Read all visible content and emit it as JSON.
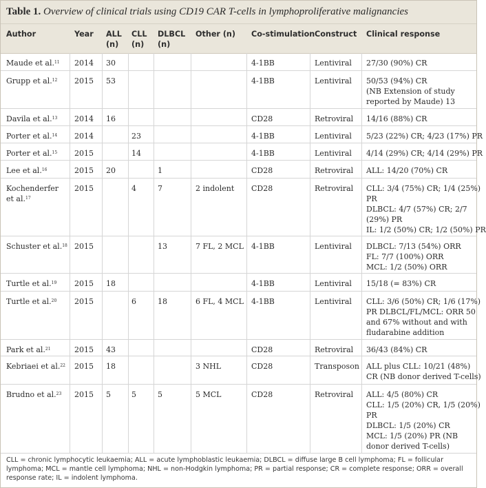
{
  "caption": {
    "label": "Table 1.",
    "title": "Overview of clinical trials using CD19 CAR T-cells in lymphoproliferative malignancies"
  },
  "headers": {
    "author": [
      "Author"
    ],
    "year": [
      "Year"
    ],
    "all": [
      "ALL",
      "(n)"
    ],
    "cll": [
      "CLL",
      "(n)"
    ],
    "dlbcl": [
      "DLBCL",
      "(n)"
    ],
    "other": [
      "Other (n)"
    ],
    "costim": [
      "Co-stimulation"
    ],
    "construct": [
      "Construct"
    ],
    "response": [
      "Clinical response"
    ]
  },
  "rows": [
    {
      "author": [
        "Maude et al."
      ],
      "ref": "11",
      "year": "2014",
      "all": "30",
      "cll": "",
      "dlbcl": "",
      "other": "",
      "costim": "4-1BB",
      "construct": "Lentiviral",
      "response": [
        "27/30 (90%) CR"
      ]
    },
    {
      "author": [
        "Grupp et al."
      ],
      "ref": "12",
      "year": "2015",
      "all": "53",
      "cll": "",
      "dlbcl": "",
      "other": "",
      "costim": "4-1BB",
      "construct": "Lentiviral",
      "response": [
        "50/53 (94%) CR",
        "(NB Extension of study",
        "reported by Maude) 13"
      ]
    },
    {
      "author": [
        "Davila et al."
      ],
      "ref": "13",
      "year": "2014",
      "all": "16",
      "cll": "",
      "dlbcl": "",
      "other": "",
      "costim": "CD28",
      "construct": "Retroviral",
      "response": [
        "14/16 (88%) CR"
      ]
    },
    {
      "author": [
        "Porter et al."
      ],
      "ref": "14",
      "year": "2014",
      "all": "",
      "cll": "23",
      "dlbcl": "",
      "other": "",
      "costim": "4-1BB",
      "construct": "Lentiviral",
      "response": [
        "5/23 (22%) CR; 4/23 (17%) PR"
      ]
    },
    {
      "author": [
        "Porter et al."
      ],
      "ref": "15",
      "year": "2015",
      "all": "",
      "cll": "14",
      "dlbcl": "",
      "other": "",
      "costim": "4-1BB",
      "construct": "Lentiviral",
      "response": [
        "4/14 (29%) CR; 4/14 (29%) PR"
      ]
    },
    {
      "author": [
        "Lee et al."
      ],
      "ref": "16",
      "year": "2015",
      "all": "20",
      "cll": "",
      "dlbcl": "1",
      "other": "",
      "costim": "CD28",
      "construct": "Retroviral",
      "response": [
        "ALL: 14/20 (70%) CR"
      ]
    },
    {
      "author": [
        "Kochenderfer",
        "et al."
      ],
      "ref": "17",
      "year": "2015",
      "all": "",
      "cll": "4",
      "dlbcl": "7",
      "other": "2 indolent",
      "costim": "CD28",
      "construct": "Retroviral",
      "response": [
        "CLL: 3/4 (75%) CR; 1/4 (25%)",
        "PR",
        "DLBCL: 4/7 (57%) CR; 2/7",
        "(29%) PR",
        "IL: 1/2 (50%) CR; 1/2 (50%) PR"
      ]
    },
    {
      "author": [
        "Schuster et al."
      ],
      "ref": "18",
      "year": "2015",
      "all": "",
      "cll": "",
      "dlbcl": "13",
      "other": "7 FL, 2 MCL",
      "costim": "4-1BB",
      "construct": "Lentiviral",
      "response": [
        "DLBCL: 7/13 (54%) ORR",
        "FL: 7/7 (100%) ORR",
        "MCL: 1/2 (50%) ORR"
      ]
    },
    {
      "author": [
        "Turtle et al."
      ],
      "ref": "19",
      "year": "2015",
      "all": "18",
      "cll": "",
      "dlbcl": "",
      "other": "",
      "costim": "4-1BB",
      "construct": "Lentiviral",
      "response": [
        "15/18 (= 83%) CR"
      ]
    },
    {
      "author": [
        "Turtle et al."
      ],
      "ref": "20",
      "year": "2015",
      "all": "",
      "cll": "6",
      "dlbcl": "18",
      "other": "6 FL, 4 MCL",
      "costim": "4-1BB",
      "construct": "Lentiviral",
      "response": [
        "CLL: 3/6 (50%) CR; 1/6 (17%)",
        "PR DLBCL/FL/MCL: ORR 50",
        "and 67% without and with",
        "fludarabine addition"
      ]
    },
    {
      "author": [
        "Park et al."
      ],
      "ref": "21",
      "year": "2015",
      "all": "43",
      "cll": "",
      "dlbcl": "",
      "other": "",
      "costim": "CD28",
      "construct": "Retroviral",
      "response": [
        "36/43 (84%) CR"
      ]
    },
    {
      "author": [
        "Kebriaei et al."
      ],
      "ref": "22",
      "year": "2015",
      "all": "18",
      "cll": "",
      "dlbcl": "",
      "other": "3 NHL",
      "costim": "CD28",
      "construct": "Transposon",
      "response": [
        "ALL plus CLL: 10/21 (48%)",
        "CR (NB donor derived T-cells)"
      ]
    },
    {
      "author": [
        "Brudno et al."
      ],
      "ref": "23",
      "year": "2015",
      "all": "5",
      "cll": "5",
      "dlbcl": "5",
      "other": "5 MCL",
      "costim": "CD28",
      "construct": "Retroviral",
      "response": [
        "ALL: 4/5 (80%) CR",
        "CLL: 1/5 (20%) CR, 1/5 (20%)",
        "PR",
        "DLBCL: 1/5 (20%) CR",
        "MCL: 1/5 (20%) PR (NB",
        "donor derived T-cells)"
      ]
    }
  ],
  "footnote": "CLL = chronic lymphocytic leukaemia; ALL = acute lymphoblastic leukaemia; DLBCL = diffuse large B cell lymphoma; FL = follicular lymphoma; MCL = mantle cell lymphoma; NHL = non-Hodgkin lymphoma; PR = partial response; CR = complete response; ORR = overall response rate; IL = indolent lymphoma."
}
